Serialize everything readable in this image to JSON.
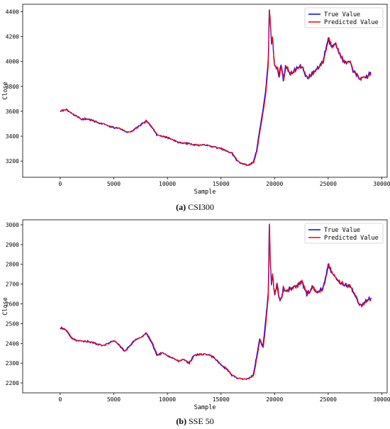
{
  "chart_data": [
    {
      "type": "line",
      "caption_label": "(a)",
      "caption_text": "CSI300",
      "xlabel": "Sample",
      "ylabel": "Close",
      "xlim": [
        -3500,
        30500
      ],
      "ylim": [
        3070,
        4460
      ],
      "xticks": [
        0,
        5000,
        10000,
        15000,
        20000,
        25000,
        30000
      ],
      "yticks": [
        3200,
        3400,
        3600,
        3800,
        4000,
        4200,
        4400
      ],
      "legend_position": "top-right",
      "series": [
        {
          "name": "True Value",
          "color": "#0000ff"
        },
        {
          "name": "Predicted Value",
          "color": "#ff0000"
        }
      ],
      "x": [
        0,
        500,
        1000,
        1500,
        2000,
        2500,
        3000,
        3500,
        4000,
        4500,
        5000,
        5500,
        6000,
        6500,
        7000,
        7500,
        8000,
        8500,
        9000,
        9500,
        10000,
        10500,
        11000,
        11500,
        12000,
        12500,
        13000,
        13500,
        14000,
        14500,
        15000,
        15500,
        16000,
        16500,
        17000,
        17500,
        18000,
        18300,
        18600,
        18900,
        19200,
        19400,
        19500,
        19600,
        19700,
        19800,
        19900,
        20000,
        20200,
        20400,
        20600,
        20800,
        21000,
        21500,
        22000,
        22500,
        23000,
        23500,
        24000,
        24500,
        25000,
        25300,
        25600,
        26000,
        26500,
        27000,
        27500,
        28000,
        28500,
        29000
      ],
      "values": [
        3600,
        3615,
        3585,
        3560,
        3535,
        3540,
        3525,
        3510,
        3500,
        3480,
        3470,
        3465,
        3440,
        3430,
        3460,
        3490,
        3520,
        3480,
        3410,
        3400,
        3390,
        3370,
        3350,
        3345,
        3340,
        3330,
        3330,
        3330,
        3320,
        3310,
        3300,
        3280,
        3265,
        3200,
        3180,
        3165,
        3190,
        3280,
        3450,
        3600,
        3800,
        4000,
        4420,
        4300,
        4150,
        4200,
        4050,
        3960,
        3960,
        3880,
        3980,
        3850,
        3960,
        3900,
        3940,
        3960,
        3870,
        3900,
        3950,
        4000,
        4190,
        4120,
        4150,
        4070,
        3990,
        3990,
        3900,
        3860,
        3870,
        3910
      ]
    },
    {
      "type": "line",
      "caption_label": "(b)",
      "caption_text": "SSE 50",
      "xlabel": "Sample",
      "ylabel": "Close",
      "xlim": [
        -3500,
        30500
      ],
      "ylim": [
        2150,
        3025
      ],
      "xticks": [
        0,
        5000,
        10000,
        15000,
        20000,
        25000,
        30000
      ],
      "yticks": [
        2200,
        2300,
        2400,
        2500,
        2600,
        2700,
        2800,
        2900,
        3000
      ],
      "legend_position": "top-right",
      "series": [
        {
          "name": "True Value",
          "color": "#0000ff"
        },
        {
          "name": "Predicted Value",
          "color": "#ff0000"
        }
      ],
      "x": [
        0,
        500,
        1000,
        1500,
        2000,
        2500,
        3000,
        3500,
        4000,
        4500,
        5000,
        5500,
        6000,
        6500,
        7000,
        7500,
        8000,
        8500,
        9000,
        9500,
        10000,
        10500,
        11000,
        11500,
        12000,
        12500,
        13000,
        13500,
        14000,
        14500,
        15000,
        15500,
        16000,
        16500,
        17000,
        17500,
        18000,
        18300,
        18600,
        18900,
        19200,
        19400,
        19500,
        19600,
        19700,
        19800,
        19900,
        20000,
        20200,
        20400,
        20600,
        20800,
        21000,
        21500,
        22000,
        22500,
        23000,
        23500,
        24000,
        24500,
        25000,
        25300,
        25600,
        26000,
        26500,
        27000,
        27500,
        28000,
        28500,
        29000
      ],
      "values": [
        2480,
        2470,
        2430,
        2415,
        2410,
        2410,
        2405,
        2395,
        2390,
        2400,
        2415,
        2390,
        2360,
        2390,
        2420,
        2430,
        2450,
        2410,
        2340,
        2350,
        2340,
        2325,
        2310,
        2320,
        2300,
        2340,
        2345,
        2345,
        2340,
        2320,
        2290,
        2270,
        2240,
        2225,
        2220,
        2220,
        2240,
        2330,
        2420,
        2380,
        2540,
        2650,
        3000,
        2800,
        2700,
        2760,
        2680,
        2650,
        2700,
        2630,
        2620,
        2680,
        2660,
        2680,
        2690,
        2710,
        2650,
        2680,
        2660,
        2680,
        2800,
        2760,
        2740,
        2710,
        2700,
        2690,
        2640,
        2590,
        2610,
        2630
      ]
    }
  ]
}
